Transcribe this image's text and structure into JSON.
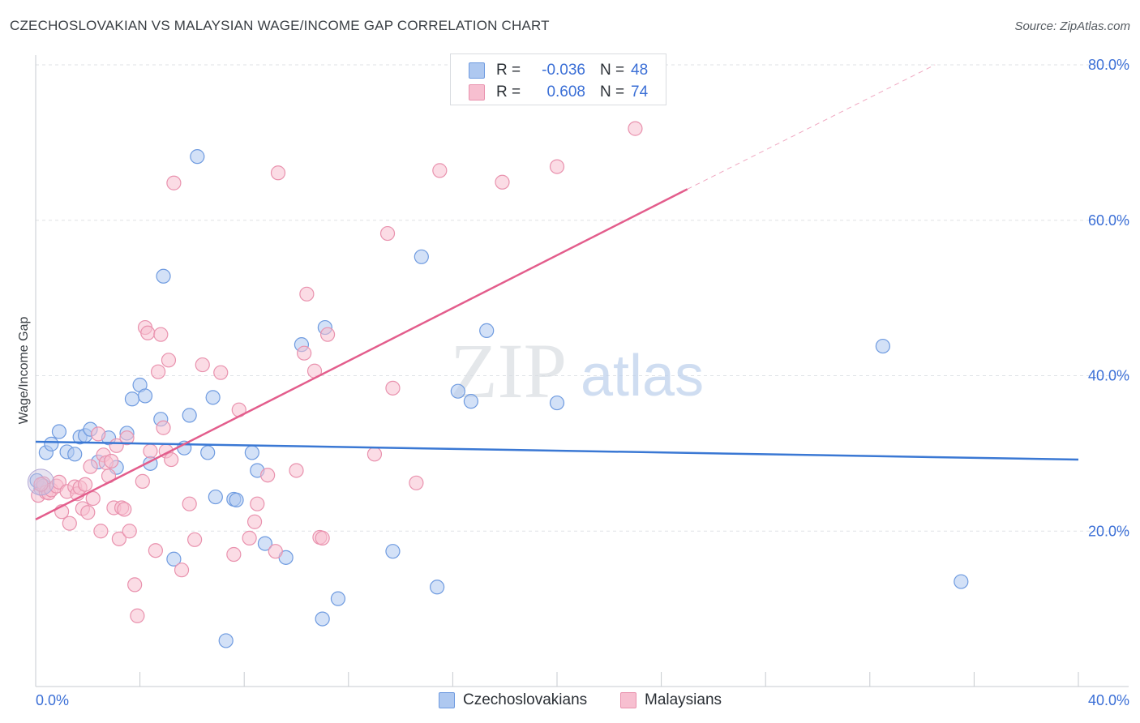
{
  "title": "CZECHOSLOVAKIAN VS MALAYSIAN WAGE/INCOME GAP CORRELATION CHART",
  "source": "Source: ZipAtlas.com",
  "watermark": {
    "zip": "ZIP",
    "atlas": "atlas"
  },
  "legend": {
    "rows": [
      {
        "r_label": "R =",
        "r_value": "-0.036",
        "n_label": "N =",
        "n_value": "48",
        "color": "#aec8f0",
        "border": "#6f9be0"
      },
      {
        "r_label": "R =",
        "r_value": "0.608",
        "n_label": "N =",
        "n_value": "74",
        "color": "#f7bfd0",
        "border": "#e992ae"
      }
    ],
    "bottom": [
      {
        "label": "Czechoslovakians",
        "color": "#aec8f0",
        "border": "#6f9be0"
      },
      {
        "label": "Malaysians",
        "color": "#f7bfd0",
        "border": "#e992ae"
      }
    ]
  },
  "chart_data": {
    "type": "scatter",
    "title": "CZECHOSLOVAKIAN VS MALAYSIAN WAGE/INCOME GAP CORRELATION CHART",
    "xlabel": "",
    "ylabel": "Wage/Income Gap",
    "xlim": [
      0,
      40
    ],
    "ylim": [
      0,
      80
    ],
    "x_tick_labels": [
      {
        "value": 0,
        "label": "0.0%"
      },
      {
        "value": 40,
        "label": "40.0%"
      }
    ],
    "y_tick_labels": [
      {
        "value": 20,
        "label": "20.0%"
      },
      {
        "value": 40,
        "label": "40.0%"
      },
      {
        "value": 60,
        "label": "60.0%"
      },
      {
        "value": 80,
        "label": "80.0%"
      }
    ],
    "grid": true,
    "series": [
      {
        "name": "Czechoslovakians",
        "color": "#aec8f0",
        "stroke": "#6f9be0",
        "trend": {
          "x0": 0,
          "y0": 31.5,
          "x1": 40,
          "y1": 29.2,
          "color": "#3a78d4"
        },
        "points": [
          [
            0.2,
            25.5
          ],
          [
            0.4,
            30.1
          ],
          [
            0.6,
            31.2
          ],
          [
            0.9,
            32.8
          ],
          [
            1.2,
            30.2
          ],
          [
            1.5,
            29.9
          ],
          [
            1.7,
            32.1
          ],
          [
            1.9,
            32.3
          ],
          [
            2.1,
            33.1
          ],
          [
            2.4,
            28.9
          ],
          [
            2.8,
            32.0
          ],
          [
            3.1,
            28.2
          ],
          [
            3.5,
            32.6
          ],
          [
            3.7,
            37.0
          ],
          [
            4.0,
            38.8
          ],
          [
            4.2,
            37.4
          ],
          [
            4.4,
            28.7
          ],
          [
            4.8,
            34.4
          ],
          [
            4.9,
            52.8
          ],
          [
            5.3,
            16.4
          ],
          [
            5.7,
            30.7
          ],
          [
            5.9,
            34.9
          ],
          [
            6.2,
            68.2
          ],
          [
            6.6,
            30.1
          ],
          [
            6.8,
            37.2
          ],
          [
            6.9,
            24.4
          ],
          [
            7.3,
            5.9
          ],
          [
            7.6,
            24.1
          ],
          [
            7.7,
            24.0
          ],
          [
            8.3,
            30.1
          ],
          [
            8.5,
            27.8
          ],
          [
            8.8,
            18.4
          ],
          [
            9.6,
            16.6
          ],
          [
            10.2,
            44.0
          ],
          [
            11.1,
            46.2
          ],
          [
            11.0,
            8.7
          ],
          [
            11.6,
            11.3
          ],
          [
            13.7,
            17.4
          ],
          [
            14.8,
            55.3
          ],
          [
            15.4,
            12.8
          ],
          [
            16.2,
            38.0
          ],
          [
            16.7,
            36.7
          ],
          [
            17.3,
            45.8
          ],
          [
            20.0,
            36.5
          ],
          [
            32.5,
            43.8
          ],
          [
            35.5,
            13.5
          ],
          [
            0.05,
            26.5
          ],
          [
            0.3,
            25.8
          ]
        ]
      },
      {
        "name": "Malaysians",
        "color": "#f7bfd0",
        "stroke": "#e992ae",
        "trend": {
          "x0": 0,
          "y0": 21.5,
          "x1": 25.0,
          "y1": 64.0,
          "dash_to_x": 34.5,
          "dash_to_y": 80.0,
          "color": "#e35d8c"
        },
        "points": [
          [
            0.1,
            24.6
          ],
          [
            0.3,
            26.1
          ],
          [
            0.4,
            25.0
          ],
          [
            0.5,
            24.9
          ],
          [
            0.6,
            25.3
          ],
          [
            0.8,
            25.8
          ],
          [
            0.9,
            26.3
          ],
          [
            1.0,
            22.5
          ],
          [
            1.2,
            25.1
          ],
          [
            1.3,
            21.0
          ],
          [
            1.5,
            25.7
          ],
          [
            1.6,
            24.8
          ],
          [
            1.7,
            25.6
          ],
          [
            1.8,
            22.9
          ],
          [
            1.9,
            26.0
          ],
          [
            2.0,
            22.4
          ],
          [
            2.1,
            28.3
          ],
          [
            2.2,
            24.2
          ],
          [
            2.4,
            32.5
          ],
          [
            2.5,
            20.0
          ],
          [
            2.6,
            29.8
          ],
          [
            2.7,
            28.8
          ],
          [
            2.8,
            27.1
          ],
          [
            2.9,
            29.0
          ],
          [
            3.0,
            23.0
          ],
          [
            3.1,
            31.0
          ],
          [
            3.2,
            19.0
          ],
          [
            3.3,
            23.0
          ],
          [
            3.4,
            22.8
          ],
          [
            3.5,
            32.0
          ],
          [
            3.6,
            20.0
          ],
          [
            3.8,
            13.1
          ],
          [
            3.9,
            9.1
          ],
          [
            4.1,
            26.4
          ],
          [
            4.2,
            46.2
          ],
          [
            4.3,
            45.5
          ],
          [
            4.4,
            30.3
          ],
          [
            4.6,
            17.5
          ],
          [
            4.7,
            40.5
          ],
          [
            4.8,
            45.3
          ],
          [
            4.9,
            33.3
          ],
          [
            5.0,
            30.3
          ],
          [
            5.1,
            42.0
          ],
          [
            5.2,
            29.2
          ],
          [
            5.3,
            64.8
          ],
          [
            5.6,
            15.0
          ],
          [
            5.9,
            23.5
          ],
          [
            6.1,
            18.9
          ],
          [
            6.4,
            41.4
          ],
          [
            7.1,
            40.4
          ],
          [
            7.6,
            17.0
          ],
          [
            7.8,
            35.6
          ],
          [
            8.2,
            19.1
          ],
          [
            8.4,
            21.2
          ],
          [
            8.5,
            23.5
          ],
          [
            8.9,
            27.2
          ],
          [
            9.2,
            17.4
          ],
          [
            9.3,
            66.1
          ],
          [
            10.0,
            27.8
          ],
          [
            10.3,
            42.9
          ],
          [
            10.4,
            50.5
          ],
          [
            10.7,
            40.6
          ],
          [
            10.9,
            19.2
          ],
          [
            11.0,
            19.1
          ],
          [
            11.2,
            45.3
          ],
          [
            13.0,
            29.9
          ],
          [
            13.5,
            58.3
          ],
          [
            13.7,
            38.4
          ],
          [
            14.6,
            26.2
          ],
          [
            15.5,
            66.4
          ],
          [
            17.9,
            64.9
          ],
          [
            20.0,
            66.9
          ],
          [
            23.0,
            71.8
          ],
          [
            0.2,
            26.0
          ]
        ]
      }
    ]
  }
}
